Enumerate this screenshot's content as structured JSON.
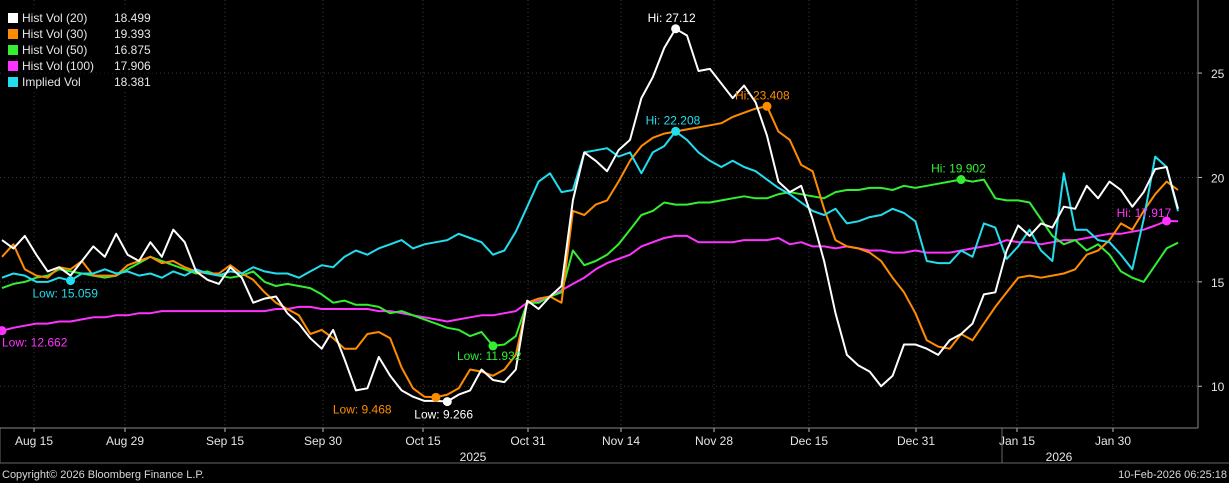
{
  "chart_data": {
    "type": "line",
    "x_ticks": [
      "Aug 15",
      "Aug 29",
      "Sep 15",
      "Sep 30",
      "Oct 15",
      "Oct 31",
      "Nov 14",
      "Nov 28",
      "Dec 15",
      "Dec 31",
      "Jan 15",
      "Jan 30"
    ],
    "year_labels": [
      "2025",
      "2026"
    ],
    "y_ticks": [
      10,
      15,
      20,
      25
    ],
    "ylim": [
      8,
      28.5
    ],
    "grid": true,
    "legend_placement": "top-left",
    "series": [
      {
        "name": "Hist Vol (20)",
        "last": "18.499",
        "color": "#ffffff",
        "values": [
          17.0,
          16.6,
          17.2,
          16.3,
          15.5,
          15.7,
          15.3,
          16.0,
          16.7,
          16.2,
          17.3,
          16.3,
          16.0,
          16.9,
          16.2,
          17.5,
          16.9,
          15.5,
          15.1,
          14.9,
          15.7,
          15.2,
          14.0,
          14.2,
          14.3,
          13.5,
          13.0,
          12.3,
          11.8,
          12.7,
          11.3,
          9.8,
          9.9,
          11.4,
          10.5,
          9.8,
          9.5,
          9.3,
          9.3,
          9.27,
          9.6,
          9.8,
          10.8,
          10.3,
          10.2,
          10.8,
          14.1,
          13.7,
          14.3,
          14.8,
          18.9,
          21.2,
          20.8,
          20.3,
          21.3,
          21.8,
          23.8,
          24.8,
          26.2,
          27.12,
          26.8,
          25.1,
          25.2,
          24.5,
          23.8,
          24.4,
          23.6,
          22.0,
          19.8,
          19.3,
          19.6,
          18.0,
          16.0,
          13.5,
          11.5,
          11.0,
          10.7,
          10.0,
          10.5,
          12.0,
          12.0,
          11.8,
          11.5,
          12.2,
          12.5,
          13.0,
          14.4,
          14.5,
          16.5,
          17.7,
          17.2,
          17.8,
          17.6,
          18.6,
          18.5,
          19.6,
          19.0,
          19.8,
          19.4,
          18.6,
          19.3,
          20.4,
          20.5,
          18.5
        ]
      },
      {
        "name": "Hist Vol (30)",
        "last": "19.393",
        "color": "#ff8c00",
        "values": [
          16.2,
          16.8,
          15.6,
          15.3,
          15.2,
          15.7,
          15.6,
          16.0,
          15.3,
          15.3,
          15.3,
          15.8,
          16.0,
          16.2,
          15.9,
          16.0,
          15.7,
          15.5,
          15.4,
          15.4,
          15.8,
          15.4,
          15.1,
          14.5,
          14.0,
          13.7,
          13.4,
          12.5,
          12.7,
          12.3,
          11.8,
          11.8,
          12.5,
          12.6,
          12.3,
          10.9,
          9.9,
          9.5,
          9.47,
          9.6,
          9.9,
          10.8,
          10.7,
          10.5,
          10.8,
          11.5,
          14.0,
          14.2,
          14.3,
          14.0,
          18.4,
          18.2,
          18.7,
          18.9,
          19.8,
          20.8,
          21.5,
          21.9,
          22.1,
          22.2,
          22.3,
          22.4,
          22.5,
          22.6,
          22.9,
          23.1,
          23.3,
          23.408,
          22.2,
          21.8,
          20.6,
          20.3,
          18.5,
          17.0,
          16.7,
          16.6,
          16.4,
          16.0,
          15.2,
          14.5,
          13.5,
          12.2,
          11.9,
          11.8,
          12.5,
          12.2,
          13.0,
          13.8,
          14.5,
          15.2,
          15.3,
          15.2,
          15.3,
          15.4,
          15.6,
          16.3,
          16.5,
          17.0,
          17.8,
          17.5,
          18.4,
          19.2,
          19.8,
          19.4
        ]
      },
      {
        "name": "Hist Vol (50)",
        "last": "16.875",
        "color": "#33ee33",
        "values": [
          14.7,
          14.9,
          15.0,
          15.2,
          15.3,
          15.6,
          15.5,
          15.4,
          15.3,
          15.2,
          15.3,
          15.6,
          15.9,
          16.2,
          16.0,
          15.8,
          15.6,
          15.4,
          15.5,
          15.3,
          15.2,
          15.3,
          15.5,
          15.0,
          14.8,
          14.9,
          14.8,
          14.7,
          14.4,
          14.0,
          14.1,
          13.9,
          13.9,
          13.8,
          13.5,
          13.6,
          13.4,
          13.2,
          13.0,
          12.8,
          12.7,
          12.4,
          12.6,
          11.93,
          12.0,
          12.4,
          14.0,
          14.0,
          14.3,
          14.5,
          16.5,
          15.8,
          16.0,
          16.3,
          16.8,
          17.5,
          18.2,
          18.4,
          18.8,
          18.7,
          18.7,
          18.8,
          18.8,
          18.9,
          19.0,
          19.1,
          19.0,
          19.0,
          19.2,
          19.3,
          19.2,
          19.1,
          19.0,
          19.3,
          19.4,
          19.4,
          19.5,
          19.5,
          19.4,
          19.6,
          19.5,
          19.6,
          19.7,
          19.8,
          19.902,
          19.8,
          19.9,
          19.0,
          18.9,
          18.9,
          18.8,
          18.0,
          17.2,
          16.8,
          17.0,
          16.5,
          16.8,
          16.3,
          15.5,
          15.2,
          15.0,
          15.8,
          16.6,
          16.875
        ]
      },
      {
        "name": "Hist Vol (100)",
        "last": "17.906",
        "color": "#ff33ff",
        "values": [
          12.662,
          12.8,
          12.9,
          13.0,
          13.0,
          13.1,
          13.1,
          13.2,
          13.3,
          13.3,
          13.4,
          13.4,
          13.5,
          13.5,
          13.6,
          13.6,
          13.6,
          13.6,
          13.6,
          13.6,
          13.6,
          13.6,
          13.6,
          13.6,
          13.7,
          13.7,
          13.8,
          13.8,
          13.7,
          13.7,
          13.7,
          13.7,
          13.7,
          13.6,
          13.6,
          13.5,
          13.4,
          13.3,
          13.2,
          13.1,
          13.2,
          13.3,
          13.4,
          13.4,
          13.5,
          13.6,
          14.0,
          14.1,
          14.3,
          14.6,
          14.9,
          15.2,
          15.6,
          15.9,
          16.1,
          16.3,
          16.7,
          16.9,
          17.1,
          17.2,
          17.2,
          16.9,
          16.9,
          16.9,
          16.9,
          17.0,
          17.0,
          17.0,
          17.1,
          16.8,
          16.9,
          16.7,
          16.7,
          16.6,
          16.7,
          16.6,
          16.5,
          16.5,
          16.4,
          16.4,
          16.5,
          16.4,
          16.4,
          16.4,
          16.5,
          16.6,
          16.7,
          16.8,
          17.0,
          16.9,
          16.9,
          16.8,
          16.9,
          17.0,
          17.0,
          17.1,
          17.2,
          17.3,
          17.3,
          17.4,
          17.5,
          17.7,
          17.917,
          17.906
        ]
      },
      {
        "name": "Implied Vol",
        "last": "18.381",
        "color": "#22ddee",
        "values": [
          15.2,
          15.4,
          15.3,
          15.0,
          15.0,
          15.2,
          15.059,
          15.4,
          15.4,
          15.6,
          15.4,
          15.5,
          15.3,
          15.4,
          15.2,
          15.5,
          15.3,
          15.6,
          15.4,
          15.3,
          15.5,
          15.4,
          15.7,
          15.5,
          15.4,
          15.4,
          15.2,
          15.5,
          15.8,
          15.7,
          16.2,
          16.5,
          16.3,
          16.6,
          16.8,
          17.0,
          16.6,
          16.8,
          16.9,
          17.0,
          17.3,
          17.1,
          16.9,
          16.3,
          16.5,
          17.4,
          18.6,
          19.8,
          20.2,
          19.3,
          19.4,
          21.2,
          21.3,
          21.4,
          21.0,
          21.2,
          20.2,
          21.2,
          21.5,
          22.208,
          21.8,
          21.2,
          20.8,
          20.5,
          20.8,
          20.5,
          20.3,
          19.9,
          19.5,
          19.2,
          18.8,
          18.4,
          18.2,
          18.5,
          17.8,
          17.9,
          18.1,
          18.2,
          18.5,
          18.3,
          17.9,
          16.0,
          15.9,
          15.9,
          16.5,
          16.2,
          17.8,
          17.6,
          16.1,
          16.7,
          17.5,
          16.5,
          16.0,
          20.2,
          17.5,
          17.5,
          17.0,
          16.9,
          16.3,
          15.6,
          18.0,
          21.0,
          20.5,
          18.381
        ]
      }
    ],
    "annotations": [
      {
        "label": "Hi: 27.12",
        "series": 0,
        "index": 59,
        "value": 27.12,
        "color": "#ffffff",
        "dx": -28,
        "dy": -7
      },
      {
        "label": "Low: 9.266",
        "series": 0,
        "index": 39,
        "value": 9.266,
        "color": "#ffffff",
        "dx": -33,
        "dy": 17
      },
      {
        "label": "Hi: 23.408",
        "series": 1,
        "index": 67,
        "value": 23.408,
        "color": "#ff8c00",
        "dx": -32,
        "dy": -7
      },
      {
        "label": "Low: 9.468",
        "series": 1,
        "index": 38,
        "value": 9.468,
        "color": "#ff8c00",
        "dx": -103,
        "dy": 16
      },
      {
        "label": "Hi: 19.902",
        "series": 2,
        "index": 84,
        "value": 19.902,
        "color": "#33ee33",
        "dx": -30,
        "dy": -7
      },
      {
        "label": "Low: 11.932",
        "series": 2,
        "index": 43,
        "value": 11.932,
        "color": "#33ee33",
        "dx": -36,
        "dy": 14
      },
      {
        "label": "Hi: 17.917",
        "series": 3,
        "index": 102,
        "value": 17.917,
        "color": "#ff33ff",
        "dx": -50,
        "dy": -4
      },
      {
        "label": "Low: 12.662",
        "series": 3,
        "index": 0,
        "value": 12.662,
        "color": "#ff33ff",
        "dx": 0,
        "dy": 16
      },
      {
        "label": "Hi: 22.208",
        "series": 4,
        "index": 59,
        "value": 22.208,
        "color": "#22ddee",
        "dx": -30,
        "dy": -7
      },
      {
        "label": "Low: 15.059",
        "series": 4,
        "index": 6,
        "value": 15.059,
        "color": "#22ddee",
        "dx": -38,
        "dy": 17
      }
    ]
  },
  "footer": {
    "copyright": "Copyright© 2026 Bloomberg Finance L.P.",
    "timestamp": "10-Feb-2026 06:25:18"
  }
}
